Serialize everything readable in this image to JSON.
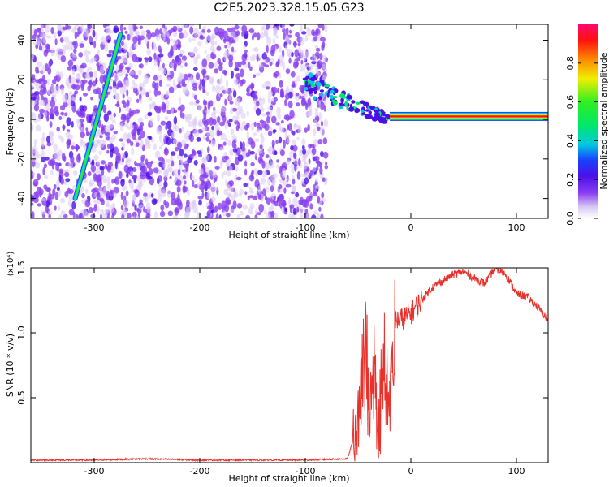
{
  "title": "C2E5.2023.328.15.05.G23",
  "chart_data": [
    {
      "type": "heatmap",
      "xlabel": "Height of straight line (km)",
      "ylabel": "Frequency (Hz)",
      "xlim": [
        -360,
        130
      ],
      "ylim": [
        -50,
        48
      ],
      "x_ticks": [
        -300,
        -200,
        -100,
        0,
        100
      ],
      "y_ticks": [
        -40,
        -20,
        0,
        20,
        40
      ],
      "colorbar": {
        "label": "Normalized spectral amplitude",
        "range": [
          0.0,
          1.0
        ],
        "ticks": [
          0.0,
          0.2,
          0.4,
          0.6,
          0.8
        ]
      },
      "features": {
        "noise_region_x": [
          -360,
          -80
        ],
        "diagonal_streak": {
          "x": [
            -318,
            -275
          ],
          "y": [
            -40,
            43
          ]
        },
        "converging_trace": {
          "x": [
            -100,
            -20
          ],
          "y": [
            18,
            0
          ]
        },
        "constant_band": {
          "x": [
            -20,
            130
          ],
          "y": 1.5,
          "amplitude": 1.0
        }
      },
      "grid": false
    },
    {
      "type": "line",
      "xlabel": "Height of straight line (km)",
      "ylabel": "SNR (10 * v/v)",
      "scale_label": "(x10⁴)",
      "xlim": [
        -360,
        130
      ],
      "ylim": [
        0,
        1.5
      ],
      "x_ticks": [
        -300,
        -200,
        -100,
        0,
        100
      ],
      "y_ticks": [
        0.5,
        1.0,
        1.5
      ],
      "series": [
        {
          "color": "#e8312b",
          "x": [
            -360,
            -300,
            -250,
            -200,
            -150,
            -100,
            -60,
            -50,
            -45,
            -40,
            -35,
            -30,
            -25,
            -20,
            -15,
            -10,
            0,
            10,
            20,
            30,
            40,
            50,
            60,
            70,
            80,
            90,
            100,
            110,
            120,
            130
          ],
          "y": [
            0.02,
            0.02,
            0.03,
            0.02,
            0.02,
            0.02,
            0.03,
            0.3,
            1.0,
            0.6,
            0.8,
            0.3,
            0.9,
            0.6,
            1.1,
            1.1,
            1.15,
            1.25,
            1.35,
            1.4,
            1.45,
            1.47,
            1.42,
            1.38,
            1.5,
            1.45,
            1.3,
            1.28,
            1.2,
            1.1
          ]
        }
      ],
      "grid": false
    }
  ]
}
